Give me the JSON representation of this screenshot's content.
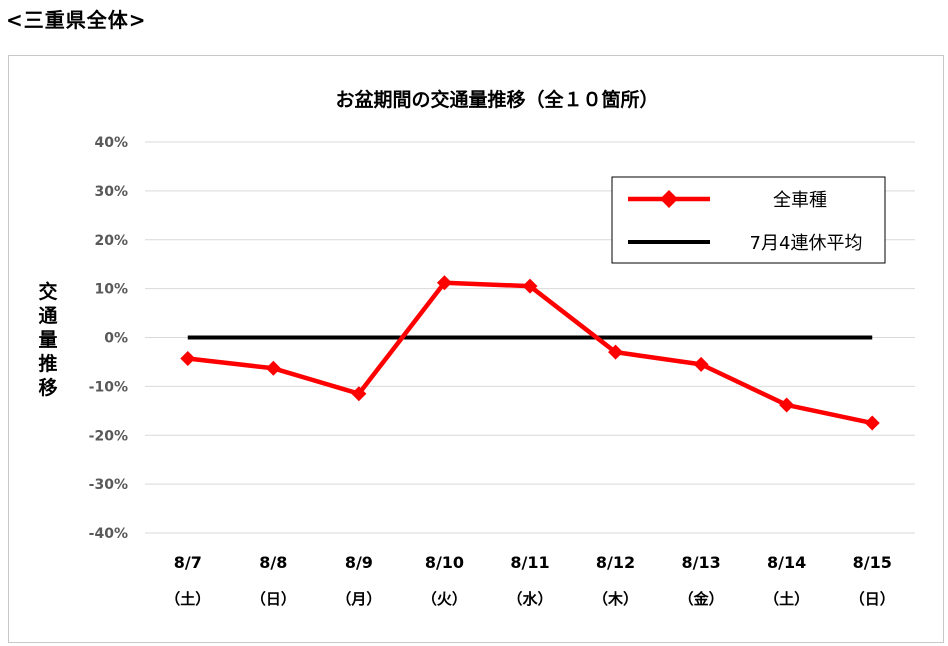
{
  "header": {
    "region_title": "<三重県全体>"
  },
  "chart_data": {
    "type": "line",
    "title": "お盆期間の交通量推移（全１０箇所）",
    "ylabel": "交通量推移",
    "xlabel": "",
    "ylim": [
      -40,
      40
    ],
    "yticks": [
      40,
      30,
      20,
      10,
      0,
      -10,
      -20,
      -30,
      -40
    ],
    "ytick_labels": [
      "40%",
      "30%",
      "20%",
      "10%",
      "0%",
      "-10%",
      "-20%",
      "-30%",
      "-40%"
    ],
    "categories": [
      "8/7",
      "8/8",
      "8/9",
      "8/10",
      "8/11",
      "8/12",
      "8/13",
      "8/14",
      "8/15"
    ],
    "weekdays": [
      "（土）",
      "（日）",
      "（月）",
      "（火）",
      "（水）",
      "（木）",
      "（金）",
      "（土）",
      "（日）"
    ],
    "grid": true,
    "legend_position": "top-right",
    "series": [
      {
        "name": "全車種",
        "color": "#ff0000",
        "marker": "diamond",
        "values": [
          -4.3,
          -6.3,
          -11.5,
          11.2,
          10.5,
          -3.0,
          -5.5,
          -13.8,
          -17.5
        ]
      },
      {
        "name": "7月4連休平均",
        "color": "#000000",
        "marker": "none",
        "values": [
          0,
          0,
          0,
          0,
          0,
          0,
          0,
          0,
          0
        ]
      }
    ]
  }
}
